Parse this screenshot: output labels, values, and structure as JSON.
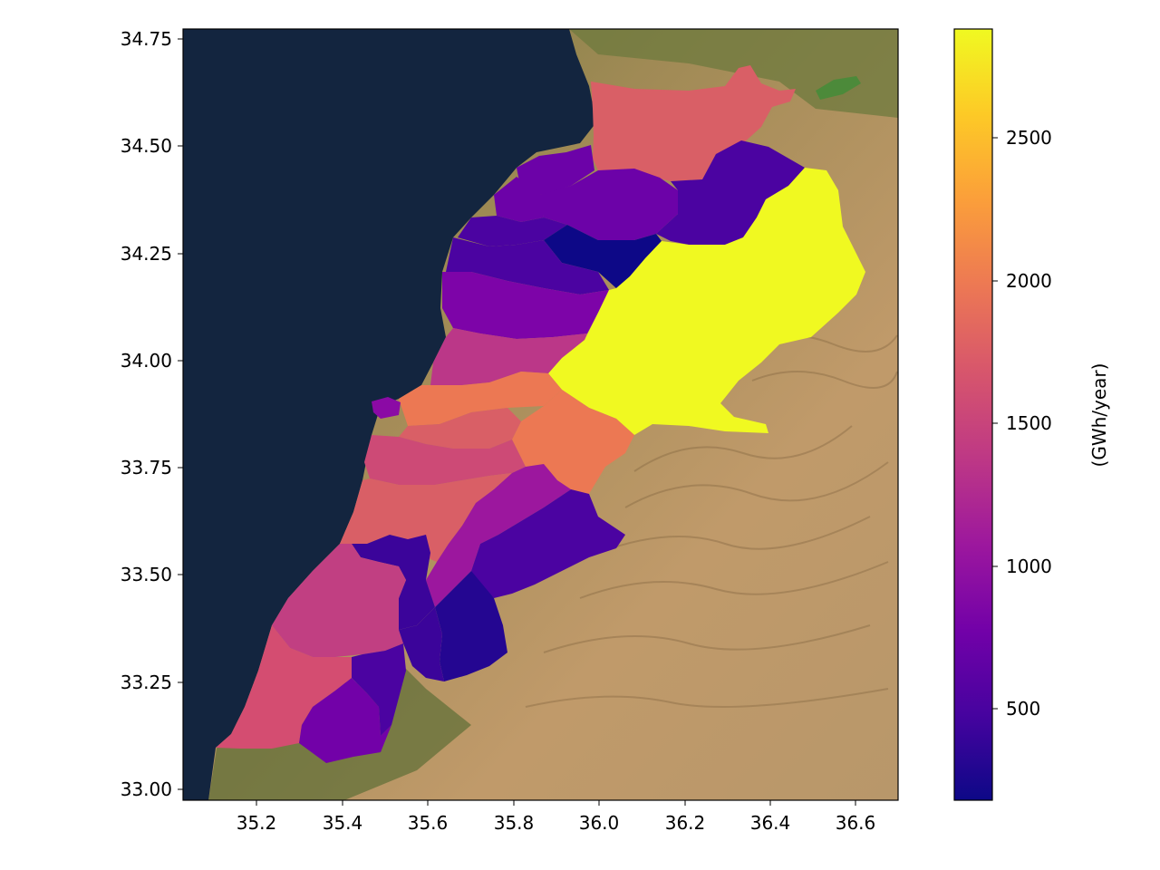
{
  "map": {
    "x_ticks": [
      "35.2",
      "35.4",
      "35.6",
      "35.8",
      "36.0",
      "36.2",
      "36.4",
      "36.6"
    ],
    "y_ticks": [
      "33.00",
      "33.25",
      "33.50",
      "33.75",
      "34.00",
      "34.25",
      "34.50",
      "34.75"
    ],
    "x_range": [
      35.02,
      36.7
    ],
    "y_range": [
      32.98,
      34.78
    ],
    "basemap": "satellite imagery",
    "colormap": "plasma"
  },
  "colorbar": {
    "label": "(GWh/year)",
    "ticks": [
      "500",
      "1000",
      "1500",
      "2000",
      "2500"
    ],
    "tick_values": [
      500,
      1000,
      1500,
      2000,
      2500
    ],
    "range": [
      180,
      2880
    ],
    "stops": [
      "#0d0887",
      "#46039f",
      "#7201a8",
      "#9c179e",
      "#bd3786",
      "#d8576b",
      "#ed7953",
      "#fb9f3a",
      "#fdca26",
      "#f0f921"
    ]
  },
  "colors": {
    "sea": "#13253f",
    "land": "#a98a58"
  }
}
